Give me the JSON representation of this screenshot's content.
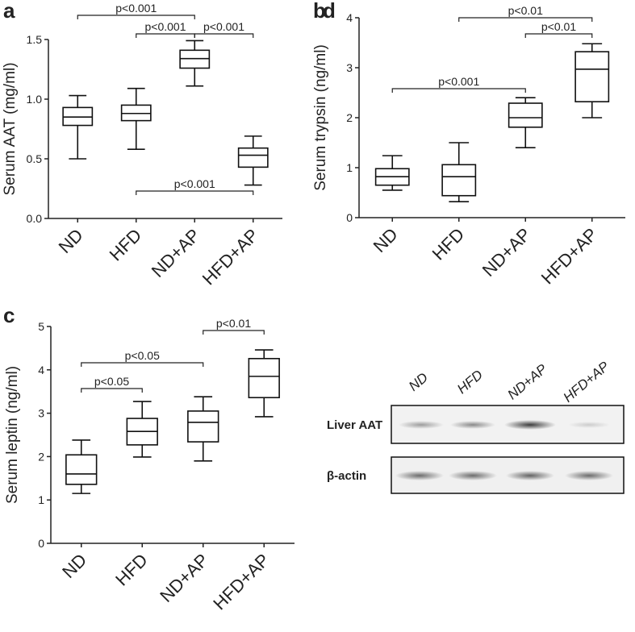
{
  "chart_data": [
    {
      "type": "box",
      "panel_label": "a",
      "y_label": "Serum AAT (mg/ml)",
      "categories": [
        "ND",
        "HFD",
        "ND+AP",
        "HFD+AP"
      ],
      "boxes": [
        {
          "min": 0.5,
          "q1": 0.78,
          "median": 0.85,
          "q3": 0.93,
          "max": 1.03
        },
        {
          "min": 0.58,
          "q1": 0.82,
          "median": 0.88,
          "q3": 0.95,
          "max": 1.09
        },
        {
          "min": 1.11,
          "q1": 1.26,
          "median": 1.34,
          "q3": 1.41,
          "max": 1.49
        },
        {
          "min": 0.28,
          "q1": 0.43,
          "median": 0.53,
          "q3": 0.59,
          "max": 0.69
        }
      ],
      "ylim": [
        0,
        1.5
      ],
      "yticks": [
        {
          "value": 0,
          "label": "0.0"
        },
        0.5,
        {
          "value": 1,
          "label": "1.0"
        },
        1.5
      ],
      "comparisons": [
        {
          "label": "p<0.001",
          "pair": [
            0,
            2
          ]
        },
        {
          "label": "p<0.001",
          "pair": [
            1,
            2
          ]
        },
        {
          "label": "p<0.001",
          "pair": [
            2,
            3
          ]
        },
        {
          "label": "p<0.001",
          "pair": [
            1,
            3
          ]
        }
      ]
    },
    {
      "type": "box",
      "panel_label": "b",
      "y_label": "Serum trypsin (ng/ml)",
      "categories": [
        "ND",
        "HFD",
        "ND+AP",
        "HFD+AP"
      ],
      "boxes": [
        {
          "min": 0.55,
          "q1": 0.65,
          "median": 0.82,
          "q3": 0.98,
          "max": 1.24
        },
        {
          "min": 0.32,
          "q1": 0.44,
          "median": 0.82,
          "q3": 1.06,
          "max": 1.5
        },
        {
          "min": 1.4,
          "q1": 1.81,
          "median": 2.0,
          "q3": 2.29,
          "max": 2.4
        },
        {
          "min": 2.0,
          "q1": 2.32,
          "median": 2.97,
          "q3": 3.32,
          "max": 3.48
        }
      ],
      "ylim": [
        0,
        4
      ],
      "yticks": [
        0,
        1,
        2,
        3,
        4
      ],
      "comparisons": [
        {
          "label": "p<0.01",
          "pair": [
            1,
            3
          ]
        },
        {
          "label": "p<0.01",
          "pair": [
            2,
            3
          ]
        },
        {
          "label": "p<0.001",
          "pair": [
            0,
            2
          ]
        }
      ]
    },
    {
      "type": "box",
      "panel_label": "c",
      "y_label": "Serum leptin (ng/ml)",
      "categories": [
        "ND",
        "HFD",
        "ND+AP",
        "HFD+AP"
      ],
      "boxes": [
        {
          "min": 1.15,
          "q1": 1.36,
          "median": 1.6,
          "q3": 2.04,
          "max": 2.38
        },
        {
          "min": 1.99,
          "q1": 2.27,
          "median": 2.58,
          "q3": 2.88,
          "max": 3.27
        },
        {
          "min": 1.9,
          "q1": 2.34,
          "median": 2.79,
          "q3": 3.05,
          "max": 3.38
        },
        {
          "min": 2.92,
          "q1": 3.36,
          "median": 3.85,
          "q3": 4.26,
          "max": 4.46
        }
      ],
      "ylim": [
        0,
        5
      ],
      "yticks": [
        0,
        1,
        2,
        3,
        4,
        5
      ],
      "comparisons": [
        {
          "label": "p<0.01",
          "pair": [
            2,
            3
          ]
        },
        {
          "label": "p<0.05",
          "pair": [
            0,
            2
          ]
        },
        {
          "label": "p<0.05",
          "pair": [
            0,
            1
          ]
        }
      ]
    }
  ],
  "blot": {
    "panel_label": "d",
    "lanes": [
      "ND",
      "HFD",
      "ND+AP",
      "HFD+AP"
    ],
    "rows": [
      "Liver AAT",
      "β-actin"
    ]
  }
}
